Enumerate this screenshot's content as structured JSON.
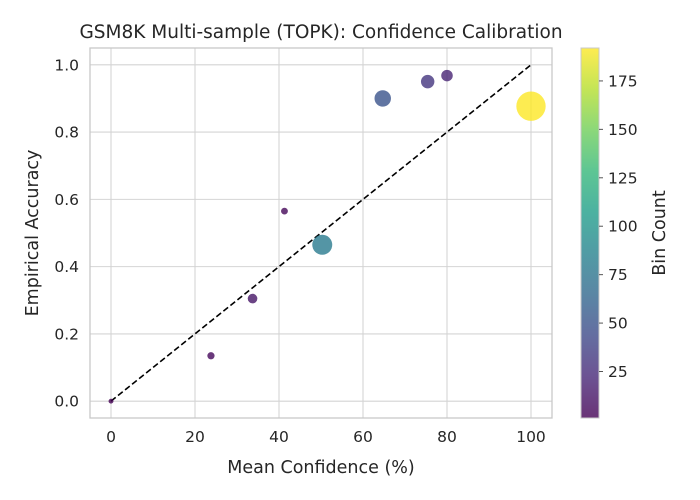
{
  "chart_data": {
    "type": "scatter",
    "title": "GSM8K Multi-sample (TOPK): Confidence Calibration",
    "xlabel": "Mean Confidence (%)",
    "ylabel": "Empirical Accuracy",
    "xlim": [
      -5,
      105
    ],
    "ylim": [
      -0.05,
      1.05
    ],
    "xticks": [
      0,
      20,
      40,
      60,
      80,
      100
    ],
    "xtick_labels": [
      "0",
      "20",
      "40",
      "60",
      "80",
      "100"
    ],
    "yticks": [
      0.0,
      0.2,
      0.4,
      0.6,
      0.8,
      1.0
    ],
    "ytick_labels": [
      "0.0",
      "0.2",
      "0.4",
      "0.6",
      "0.8",
      "1.0"
    ],
    "grid": true,
    "reference_line": {
      "style": "dashed",
      "color": "#000000",
      "x": [
        0,
        100
      ],
      "y": [
        0,
        1
      ]
    },
    "points": [
      {
        "x": 0,
        "y": 0.0,
        "count": 1
      },
      {
        "x": 23.8,
        "y": 0.135,
        "count": 5
      },
      {
        "x": 33.7,
        "y": 0.305,
        "count": 12
      },
      {
        "x": 41.3,
        "y": 0.565,
        "count": 4
      },
      {
        "x": 50.3,
        "y": 0.465,
        "count": 80
      },
      {
        "x": 64.7,
        "y": 0.9,
        "count": 50
      },
      {
        "x": 75.4,
        "y": 0.95,
        "count": 30
      },
      {
        "x": 80.0,
        "y": 0.968,
        "count": 20
      },
      {
        "x": 100.0,
        "y": 0.877,
        "count": 192
      }
    ],
    "colorbar": {
      "label": "Bin Count",
      "colormap": "viridis",
      "min": 1,
      "max": 192,
      "ticks": [
        25,
        50,
        75,
        100,
        125,
        150,
        175
      ],
      "tick_labels": [
        "25",
        "50",
        "75",
        "100",
        "125",
        "150",
        "175"
      ]
    },
    "marker_alpha": 0.8,
    "viridis_colors": [
      "#440154",
      "#482878",
      "#3e4989",
      "#31688e",
      "#26828e",
      "#1f9e89",
      "#35b779",
      "#6ece58",
      "#b5de2b",
      "#fde725"
    ]
  }
}
